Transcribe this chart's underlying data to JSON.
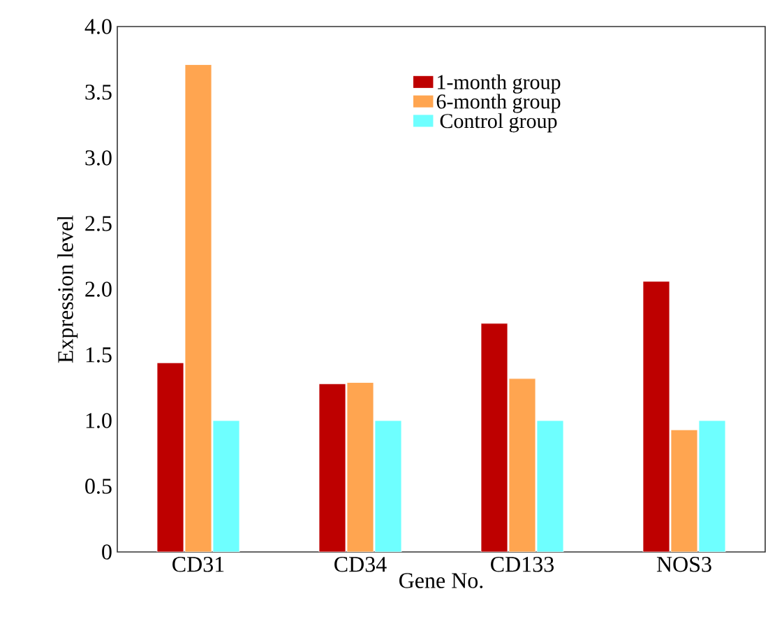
{
  "chart_data": {
    "type": "bar",
    "xlabel": "Gene No.",
    "ylabel": "Expression level",
    "categories": [
      "CD31",
      "CD34",
      "CD133",
      "NOS3"
    ],
    "series": [
      {
        "name": "1-month group",
        "color": "#be0000",
        "values": [
          1.44,
          1.28,
          1.74,
          2.06
        ]
      },
      {
        "name": "6-month group",
        "color": "#ffa550",
        "values": [
          3.71,
          1.29,
          1.32,
          0.93
        ]
      },
      {
        "name": "Control group",
        "color": "#6effff",
        "values": [
          1.0,
          1.0,
          1.0,
          1.0
        ]
      }
    ],
    "ylim": [
      0,
      4.0
    ],
    "yticks": [
      {
        "value": 0,
        "label": "0"
      },
      {
        "value": 0.5,
        "label": "0.5"
      },
      {
        "value": 1.0,
        "label": "1.0"
      },
      {
        "value": 1.5,
        "label": "1.5"
      },
      {
        "value": 2.0,
        "label": "2.0"
      },
      {
        "value": 2.5,
        "label": "2.5"
      },
      {
        "value": 3.0,
        "label": "3.0"
      },
      {
        "value": 3.5,
        "label": "3.5"
      },
      {
        "value": 4.0,
        "label": "4.0"
      }
    ],
    "legend": "top right",
    "grid": false
  }
}
